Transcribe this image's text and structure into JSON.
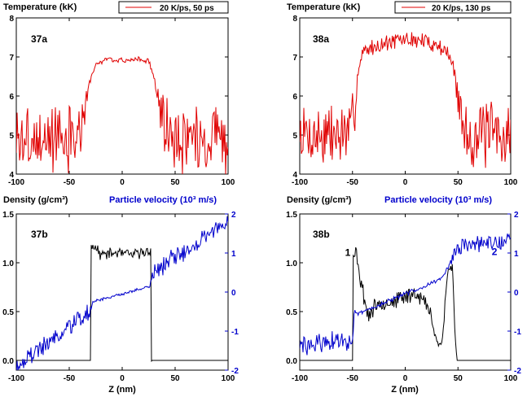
{
  "colors": {
    "temperature": "#e00000",
    "density": "#000000",
    "velocity": "#0000cc"
  },
  "chart_data": [
    {
      "id": "37a",
      "type": "line",
      "panel_label": "37a",
      "ylabel": "Temperature (kK)",
      "xlim": [
        -100,
        100
      ],
      "ylim": [
        4,
        8
      ],
      "xticks": [
        "-100",
        "-50",
        "0",
        "50",
        "100"
      ],
      "yticks": [
        "4",
        "5",
        "6",
        "7",
        "8"
      ],
      "show_xticklabels": true,
      "legend": "20 K/ps, 50 ps",
      "series": [
        {
          "name": "20 K/ps, 50 ps",
          "color": "#e00000",
          "profile": [
            [
              -100,
              4.9
            ],
            [
              -45,
              4.9
            ],
            [
              -38,
              5.2
            ],
            [
              -30,
              6.4
            ],
            [
              -25,
              6.8
            ],
            [
              -15,
              6.95
            ],
            [
              0,
              6.9
            ],
            [
              15,
              6.95
            ],
            [
              25,
              6.9
            ],
            [
              30,
              6.5
            ],
            [
              35,
              5.8
            ],
            [
              42,
              5.1
            ],
            [
              50,
              4.9
            ],
            [
              100,
              4.9
            ]
          ],
          "noise": [
            [
              -100,
              1.2
            ],
            [
              -42,
              1.2
            ],
            [
              -30,
              0.1
            ],
            [
              30,
              0.1
            ],
            [
              40,
              1.2
            ],
            [
              100,
              1.2
            ]
          ],
          "seed": 3
        }
      ]
    },
    {
      "id": "38a",
      "type": "line",
      "panel_label": "38a",
      "ylabel": "Temperature (kK)",
      "xlim": [
        -100,
        100
      ],
      "ylim": [
        4,
        8
      ],
      "xticks": [
        "-100",
        "-50",
        "0",
        "50",
        "100"
      ],
      "yticks": [
        "4",
        "5",
        "6",
        "7",
        "8"
      ],
      "show_xticklabels": true,
      "legend": "20 K/ps, 130 ps",
      "series": [
        {
          "name": "20 K/ps, 130 ps",
          "color": "#e00000",
          "profile": [
            [
              -100,
              5.0
            ],
            [
              -52,
              5.0
            ],
            [
              -48,
              5.6
            ],
            [
              -45,
              6.6
            ],
            [
              -40,
              7.15
            ],
            [
              -20,
              7.35
            ],
            [
              0,
              7.45
            ],
            [
              20,
              7.4
            ],
            [
              38,
              7.2
            ],
            [
              45,
              6.8
            ],
            [
              50,
              6.0
            ],
            [
              55,
              5.2
            ],
            [
              60,
              5.0
            ],
            [
              100,
              5.0
            ]
          ],
          "noise": [
            [
              -100,
              1.2
            ],
            [
              -50,
              1.2
            ],
            [
              -45,
              0.3
            ],
            [
              45,
              0.3
            ],
            [
              55,
              1.2
            ],
            [
              100,
              1.2
            ]
          ],
          "seed": 7
        }
      ]
    },
    {
      "id": "37b",
      "type": "line",
      "panel_label": "37b",
      "ylabel": "Density (g/cm³)",
      "y2label": "Particle velocity (10³ m/s)",
      "xlabel": "Z (nm)",
      "xlim": [
        -100,
        100
      ],
      "ylim": [
        -0.1,
        1.5
      ],
      "y2lim": [
        -2,
        2
      ],
      "xticks": [
        "-100",
        "-50",
        "0",
        "50",
        "100"
      ],
      "yticks": [
        "0.0",
        "0.5",
        "1.0",
        "1.5"
      ],
      "y2ticks": [
        "-2",
        "-1",
        "0",
        "1",
        "2"
      ],
      "show_xticklabels": true,
      "series": [
        {
          "name": "Density",
          "color": "#000000",
          "axis": "left",
          "profile": [
            [
              -100,
              0.0
            ],
            [
              -30,
              0.0
            ],
            [
              -29.9,
              1.22
            ],
            [
              -20,
              1.08
            ],
            [
              -5,
              1.1
            ],
            [
              10,
              1.08
            ],
            [
              25,
              1.12
            ],
            [
              27,
              1.15
            ],
            [
              27.1,
              0.0
            ],
            [
              100,
              0.0
            ]
          ],
          "noise": [
            [
              -100,
              0.0
            ],
            [
              -30,
              0.0
            ],
            [
              -29,
              0.08
            ],
            [
              27,
              0.08
            ],
            [
              28,
              0.0
            ],
            [
              100,
              0.0
            ]
          ],
          "seed": 11
        },
        {
          "name": "Velocity",
          "color": "#0000cc",
          "axis": "right",
          "profile": [
            [
              -100,
              -1.9
            ],
            [
              -30,
              -0.5
            ],
            [
              -28,
              -0.25
            ],
            [
              0,
              -0.05
            ],
            [
              26,
              0.15
            ],
            [
              30,
              0.5
            ],
            [
              100,
              1.85
            ]
          ],
          "noise": [
            [
              -100,
              0.35
            ],
            [
              -32,
              0.35
            ],
            [
              -28,
              0.05
            ],
            [
              26,
              0.05
            ],
            [
              30,
              0.35
            ],
            [
              100,
              0.35
            ]
          ],
          "seed": 19
        }
      ]
    },
    {
      "id": "38b",
      "type": "line",
      "panel_label": "38b",
      "ylabel": "Density (g/cm³)",
      "y2label": "Particle velocity (10³ m/s)",
      "xlabel": "Z (nm)",
      "xlim": [
        -100,
        100
      ],
      "ylim": [
        -0.1,
        1.5
      ],
      "y2lim": [
        -2,
        2
      ],
      "xticks": [
        "-100",
        "-50",
        "0",
        "50",
        "100"
      ],
      "yticks": [
        "0.0",
        "0.5",
        "1.0",
        "1.5"
      ],
      "y2ticks": [
        "-2",
        "-1",
        "0",
        "1",
        "2"
      ],
      "show_xticklabels": true,
      "annotations": [
        {
          "text": "1",
          "x": -57,
          "y": 1.07,
          "axis": "left",
          "color": "#000000"
        },
        {
          "text": "2",
          "x": 82,
          "y": 0.95,
          "axis": "right",
          "color": "#0000cc"
        }
      ],
      "series": [
        {
          "name": "Density",
          "color": "#000000",
          "axis": "left",
          "profile": [
            [
              -100,
              0.0
            ],
            [
              -50,
              0.0
            ],
            [
              -49.9,
              1.05
            ],
            [
              -46,
              1.1
            ],
            [
              -42,
              0.8
            ],
            [
              -35,
              0.45
            ],
            [
              -25,
              0.6
            ],
            [
              -10,
              0.6
            ],
            [
              0,
              0.65
            ],
            [
              10,
              0.7
            ],
            [
              18,
              0.6
            ],
            [
              25,
              0.45
            ],
            [
              30,
              0.2
            ],
            [
              33,
              0.15
            ],
            [
              36,
              0.3
            ],
            [
              40,
              0.9
            ],
            [
              45,
              0.95
            ],
            [
              47,
              0.3
            ],
            [
              49,
              0.0
            ],
            [
              100,
              0.0
            ]
          ],
          "noise": [
            [
              -100,
              0.0
            ],
            [
              -50,
              0.0
            ],
            [
              -48,
              0.12
            ],
            [
              45,
              0.12
            ],
            [
              48,
              0.0
            ],
            [
              100,
              0.0
            ]
          ],
          "seed": 23
        },
        {
          "name": "Velocity",
          "color": "#0000cc",
          "axis": "right",
          "profile": [
            [
              -100,
              -1.4
            ],
            [
              -50,
              -1.2
            ],
            [
              -48,
              -0.6
            ],
            [
              0,
              -0.05
            ],
            [
              35,
              0.35
            ],
            [
              45,
              0.9
            ],
            [
              55,
              1.2
            ],
            [
              100,
              1.3
            ]
          ],
          "noise": [
            [
              -100,
              0.4
            ],
            [
              -50,
              0.4
            ],
            [
              -46,
              0.08
            ],
            [
              40,
              0.08
            ],
            [
              48,
              0.3
            ],
            [
              100,
              0.3
            ]
          ],
          "seed": 29
        }
      ]
    }
  ]
}
